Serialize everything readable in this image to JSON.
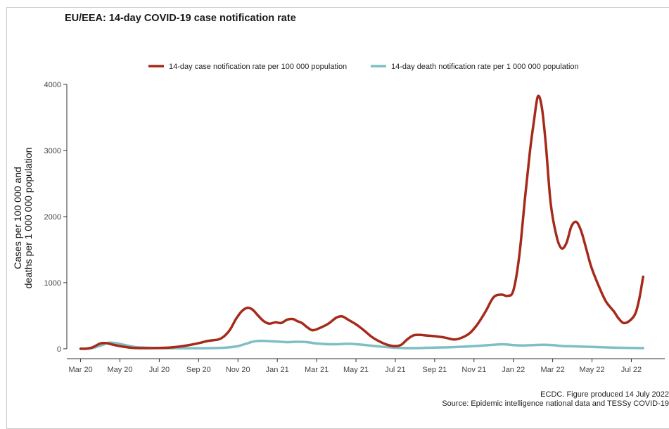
{
  "chart_data": {
    "type": "line",
    "title": "EU/EEA: 14-day COVID-19 case notification rate",
    "ylabel_line1": "Cases per 100 000 and",
    "ylabel_line2": "deaths per 1 000 000 population",
    "xlabel": "",
    "ylim": [
      -150,
      4000
    ],
    "yticks": [
      "0",
      "1000",
      "2000",
      "3000",
      "4000"
    ],
    "ytick_values": [
      0,
      1000,
      2000,
      3000,
      4000
    ],
    "x_tick_labels": [
      "Mar 20",
      "May 20",
      "Jul 20",
      "Sep 20",
      "Nov 20",
      "Jan 21",
      "Mar 21",
      "May 21",
      "Jul 21",
      "Sep 21",
      "Nov 21",
      "Jan 22",
      "Mar 22",
      "May 22",
      "Jul 22"
    ],
    "x_tick_months": [
      0,
      2,
      4,
      6,
      8,
      10,
      12,
      14,
      16,
      18,
      20,
      22,
      24,
      26,
      28
    ],
    "xlim_months": [
      -0.7,
      29.7
    ],
    "legend_position": "top",
    "grid": false,
    "series": [
      {
        "name": "14-day case notification rate per 100 000 population",
        "color": "#a52a1a",
        "x_months": [
          0,
          0.3,
          0.6,
          1.0,
          1.3,
          1.6,
          2.0,
          2.5,
          3.0,
          3.5,
          4.0,
          4.5,
          5.0,
          5.5,
          6.0,
          6.5,
          7.0,
          7.3,
          7.6,
          7.9,
          8.2,
          8.5,
          8.75,
          9.0,
          9.3,
          9.6,
          9.9,
          10.2,
          10.5,
          10.8,
          11.0,
          11.25,
          11.5,
          11.8,
          12.2,
          12.6,
          13.0,
          13.3,
          13.6,
          14.0,
          14.4,
          14.8,
          15.2,
          15.6,
          16.0,
          16.3,
          16.6,
          16.9,
          17.2,
          17.6,
          18.0,
          18.5,
          19.0,
          19.4,
          19.8,
          20.2,
          20.6,
          21.0,
          21.4,
          21.7,
          22.0,
          22.3,
          22.6,
          22.85,
          23.05,
          23.25,
          23.45,
          23.65,
          23.9,
          24.2,
          24.45,
          24.7,
          24.95,
          25.2,
          25.45,
          25.7,
          25.95,
          26.3,
          26.7,
          27.1,
          27.35,
          27.6,
          27.9,
          28.2,
          28.4,
          28.6
        ],
        "y": [
          0,
          2,
          20,
          80,
          85,
          65,
          40,
          18,
          10,
          10,
          12,
          18,
          32,
          55,
          85,
          120,
          140,
          190,
          290,
          450,
          570,
          620,
          590,
          510,
          420,
          380,
          400,
          390,
          440,
          450,
          420,
          390,
          330,
          280,
          320,
          380,
          470,
          490,
          440,
          370,
          280,
          180,
          110,
          60,
          40,
          60,
          140,
          200,
          210,
          200,
          190,
          170,
          140,
          170,
          240,
          380,
          570,
          780,
          820,
          800,
          880,
          1400,
          2300,
          3000,
          3450,
          3820,
          3650,
          3100,
          2200,
          1700,
          1520,
          1600,
          1850,
          1920,
          1780,
          1520,
          1250,
          980,
          720,
          570,
          460,
          390,
          420,
          530,
          750,
          1090
        ]
      },
      {
        "name": "14-day death notification rate per 1 000 000 population",
        "color": "#7fbfc4",
        "x_months": [
          0,
          0.5,
          1.0,
          1.4,
          1.8,
          2.2,
          2.6,
          3.0,
          4.0,
          5.0,
          6.0,
          7.0,
          7.5,
          8.0,
          8.4,
          8.8,
          9.2,
          9.6,
          10.0,
          10.5,
          11.0,
          11.5,
          12.0,
          12.5,
          13.0,
          13.5,
          14.0,
          15.0,
          16.0,
          17.0,
          18.0,
          19.0,
          20.0,
          20.5,
          21.0,
          21.5,
          22.0,
          22.5,
          23.0,
          23.5,
          24.0,
          24.5,
          25.0,
          25.5,
          26.0,
          27.0,
          28.0,
          28.6
        ],
        "y": [
          0,
          5,
          45,
          90,
          85,
          60,
          35,
          20,
          10,
          8,
          8,
          12,
          20,
          40,
          75,
          110,
          120,
          115,
          110,
          100,
          105,
          100,
          80,
          70,
          68,
          75,
          70,
          40,
          15,
          10,
          18,
          25,
          40,
          50,
          60,
          68,
          55,
          50,
          55,
          60,
          55,
          42,
          38,
          32,
          28,
          18,
          12,
          10
        ]
      }
    ],
    "footer_line1": "ECDC. Figure produced 14 July 2022",
    "footer_line2": "Source: Epidemic intelligence national data and TESSy COVID-19"
  }
}
